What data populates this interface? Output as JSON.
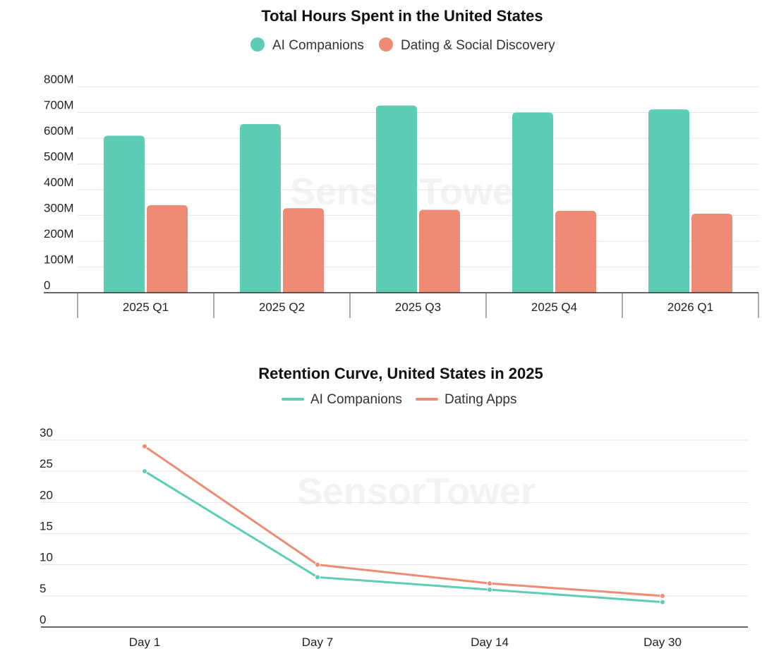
{
  "charts": {
    "bar": {
      "title": "Total Hours Spent in the United States",
      "legend": [
        "AI Companions",
        "Dating & Social Discovery"
      ],
      "watermark": "SensorTower"
    },
    "line": {
      "title": "Retention Curve, United States in 2025",
      "legend": [
        "AI Companions",
        "Dating Apps"
      ],
      "watermark": "SensorTower"
    }
  },
  "colors": {
    "teal": "#5ecdb6",
    "salmon": "#ee8b74"
  },
  "chart_data": [
    {
      "type": "bar",
      "title": "Total Hours Spent in the United States",
      "categories": [
        "2025 Q1",
        "2025 Q2",
        "2025 Q3",
        "2025 Q4",
        "2026 Q1"
      ],
      "series": [
        {
          "name": "AI Companions",
          "values": [
            610,
            655,
            727,
            700,
            712
          ],
          "color": "#5ecdb6"
        },
        {
          "name": "Dating & Social Discovery",
          "values": [
            340,
            328,
            322,
            318,
            307
          ],
          "color": "#ee8b74"
        }
      ],
      "yticks": [
        "0",
        "100M",
        "200M",
        "300M",
        "400M",
        "500M",
        "600M",
        "700M",
        "800M"
      ],
      "ylim": [
        0,
        800
      ],
      "grid": true,
      "legend_position": "top-center"
    },
    {
      "type": "line",
      "title": "Retention Curve, United States in 2025",
      "categories": [
        "Day 1",
        "Day 7",
        "Day 14",
        "Day 30"
      ],
      "series": [
        {
          "name": "AI Companions",
          "values": [
            25,
            8,
            6,
            4
          ],
          "color": "#5ecdb6"
        },
        {
          "name": "Dating Apps",
          "values": [
            29,
            10,
            7,
            5
          ],
          "color": "#ee8b74"
        }
      ],
      "yticks": [
        "0",
        "5",
        "10",
        "15",
        "20",
        "25",
        "30"
      ],
      "ylim": [
        0,
        30
      ],
      "grid": true,
      "legend_position": "top-center"
    }
  ]
}
